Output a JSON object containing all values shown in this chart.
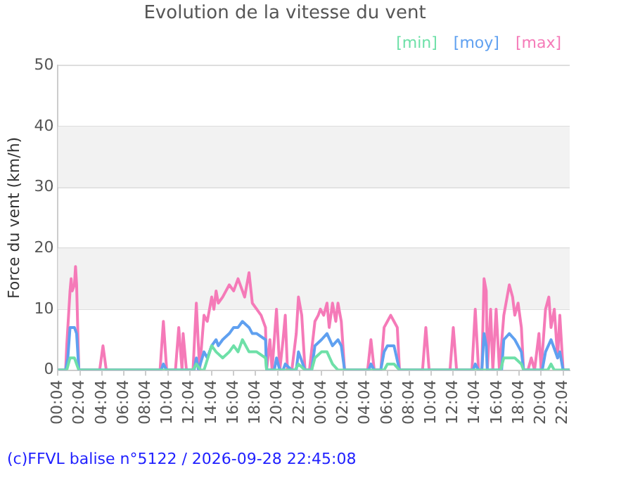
{
  "chart_data": {
    "type": "line",
    "title": "Evolution de la vitesse du vent",
    "ylabel": "Force du vent (km/h)",
    "xlim": [
      "2026-09-27T00:04",
      "2026-09-28T22:40"
    ],
    "xticks": [
      {
        "value": "2026-09-27T00:04",
        "label": "00:04"
      },
      {
        "value": "2026-09-27T02:04",
        "label": "02:04"
      },
      {
        "value": "2026-09-27T04:04",
        "label": "04:04"
      },
      {
        "value": "2026-09-27T06:04",
        "label": "06:04"
      },
      {
        "value": "2026-09-27T08:04",
        "label": "08:04"
      },
      {
        "value": "2026-09-27T10:04",
        "label": "10:04"
      },
      {
        "value": "2026-09-27T12:04",
        "label": "12:04"
      },
      {
        "value": "2026-09-27T14:04",
        "label": "14:04"
      },
      {
        "value": "2026-09-27T16:04",
        "label": "16:04"
      },
      {
        "value": "2026-09-27T18:04",
        "label": "18:04"
      },
      {
        "value": "2026-09-27T20:04",
        "label": "20:04"
      },
      {
        "value": "2026-09-27T22:04",
        "label": "22:04"
      },
      {
        "value": "2026-09-28T00:04",
        "label": "00:04"
      },
      {
        "value": "2026-09-28T02:04",
        "label": "02:04"
      },
      {
        "value": "2026-09-28T04:04",
        "label": "04:04"
      },
      {
        "value": "2026-09-28T06:04",
        "label": "06:04"
      },
      {
        "value": "2026-09-28T08:04",
        "label": "08:04"
      },
      {
        "value": "2026-09-28T10:04",
        "label": "10:04"
      },
      {
        "value": "2026-09-28T12:04",
        "label": "12:04"
      },
      {
        "value": "2026-09-28T14:04",
        "label": "14:04"
      },
      {
        "value": "2026-09-28T16:04",
        "label": "16:04"
      },
      {
        "value": "2026-09-28T18:04",
        "label": "18:04"
      },
      {
        "value": "2026-09-28T20:04",
        "label": "20:04"
      },
      {
        "value": "2026-09-28T22:04",
        "label": "22:04"
      }
    ],
    "ylim": [
      0,
      50
    ],
    "yticks": [
      0,
      10,
      20,
      30,
      40,
      50
    ],
    "grid": "y",
    "legend": "top right",
    "marker": "none",
    "line_style": "solid",
    "bands": [
      {
        "axis": "y",
        "from": 10,
        "to": 20,
        "color": "#f2f2f2"
      },
      {
        "axis": "y",
        "from": 30,
        "to": 40,
        "color": "#f2f2f2"
      }
    ],
    "annotations": [
      "(c)FFVL balise n°5122 / 2026-09-28 22:45:08"
    ],
    "series": [
      {
        "name": "[min]",
        "color": "#6ee0a8",
        "x": [
          "2026-09-27T00:04",
          "2026-09-27T00:52",
          "2026-09-27T01:10",
          "2026-09-27T01:34",
          "2026-09-27T01:58",
          "2026-09-27T12:22",
          "2026-09-27T12:40",
          "2026-09-27T13:04",
          "2026-09-27T13:22",
          "2026-09-27T14:04",
          "2026-09-27T14:28",
          "2026-09-27T15:04",
          "2026-09-27T15:40",
          "2026-09-27T16:04",
          "2026-09-27T16:28",
          "2026-09-27T16:52",
          "2026-09-27T17:28",
          "2026-09-27T18:10",
          "2026-09-27T18:58",
          "2026-09-27T19:04",
          "2026-09-27T21:40",
          "2026-09-27T21:58",
          "2026-09-27T22:34",
          "2026-09-27T23:10",
          "2026-09-27T23:28",
          "2026-09-28T00:04",
          "2026-09-28T00:34",
          "2026-09-28T01:04",
          "2026-09-28T01:34",
          "2026-09-28T05:46",
          "2026-09-28T06:04",
          "2026-09-28T06:40",
          "2026-09-28T07:10",
          "2026-09-28T16:22",
          "2026-09-28T16:40",
          "2026-09-28T17:40",
          "2026-09-28T18:16",
          "2026-09-28T18:28",
          "2026-09-28T20:40",
          "2026-09-28T20:58",
          "2026-09-28T21:16",
          "2026-09-28T22:40"
        ],
        "values": [
          0,
          0,
          2,
          2,
          0,
          0,
          1,
          0,
          0,
          4,
          3,
          2,
          3,
          4,
          3,
          5,
          3,
          3,
          2,
          0,
          0,
          1,
          0,
          0,
          2,
          3,
          3,
          1,
          0,
          0,
          1,
          1,
          0,
          0,
          2,
          2,
          1,
          0,
          0,
          1,
          0,
          0
        ]
      },
      {
        "name": "[moy]",
        "color": "#5fa0f0",
        "x": [
          "2026-09-27T00:04",
          "2026-09-27T00:46",
          "2026-09-27T00:58",
          "2026-09-27T01:10",
          "2026-09-27T01:34",
          "2026-09-27T01:46",
          "2026-09-27T01:58",
          "2026-09-27T09:28",
          "2026-09-27T09:40",
          "2026-09-27T09:58",
          "2026-09-27T12:28",
          "2026-09-27T12:40",
          "2026-09-27T12:52",
          "2026-09-27T13:22",
          "2026-09-27T13:40",
          "2026-09-27T14:04",
          "2026-09-27T14:28",
          "2026-09-27T14:40",
          "2026-09-27T15:04",
          "2026-09-27T15:40",
          "2026-09-27T16:04",
          "2026-09-27T16:28",
          "2026-09-27T16:52",
          "2026-09-27T17:28",
          "2026-09-27T17:46",
          "2026-09-27T18:10",
          "2026-09-27T18:58",
          "2026-09-27T19:04",
          "2026-09-27T19:46",
          "2026-09-27T19:58",
          "2026-09-27T20:16",
          "2026-09-27T20:34",
          "2026-09-27T20:46",
          "2026-09-27T21:22",
          "2026-09-27T21:46",
          "2026-09-27T21:58",
          "2026-09-27T22:34",
          "2026-09-27T23:10",
          "2026-09-27T23:28",
          "2026-09-28T00:04",
          "2026-09-28T00:34",
          "2026-09-28T01:04",
          "2026-09-28T01:34",
          "2026-09-28T01:52",
          "2026-09-28T02:10",
          "2026-09-28T04:22",
          "2026-09-28T04:34",
          "2026-09-28T04:52",
          "2026-09-28T05:28",
          "2026-09-28T05:46",
          "2026-09-28T06:04",
          "2026-09-28T06:40",
          "2026-09-28T07:10",
          "2026-09-28T13:52",
          "2026-09-28T14:04",
          "2026-09-28T14:22",
          "2026-09-28T14:40",
          "2026-09-28T14:52",
          "2026-09-28T15:04",
          "2026-09-28T15:10",
          "2026-09-28T16:28",
          "2026-09-28T16:40",
          "2026-09-28T17:10",
          "2026-09-28T17:40",
          "2026-09-28T18:16",
          "2026-09-28T18:28",
          "2026-09-28T20:10",
          "2026-09-28T20:28",
          "2026-09-28T20:58",
          "2026-09-28T21:34",
          "2026-09-28T21:46",
          "2026-09-28T22:04",
          "2026-09-28T22:40"
        ],
        "values": [
          0,
          0,
          2,
          7,
          7,
          6,
          0,
          0,
          1,
          0,
          0,
          2,
          0,
          3,
          2,
          4,
          5,
          4,
          5,
          6,
          7,
          7,
          8,
          7,
          6,
          6,
          5,
          0,
          0,
          2,
          0,
          0,
          1,
          0,
          0,
          3,
          0,
          0,
          4,
          5,
          6,
          4,
          5,
          4,
          0,
          0,
          1,
          0,
          0,
          3,
          4,
          4,
          0,
          0,
          1,
          0,
          0,
          6,
          4,
          0,
          0,
          5,
          6,
          5,
          3,
          0,
          0,
          3,
          5,
          2,
          3,
          0,
          0
        ]
      },
      {
        "name": "[max]",
        "color": "#f57ab8",
        "x": [
          "2026-09-27T00:04",
          "2026-09-27T00:46",
          "2026-09-27T00:52",
          "2026-09-27T01:10",
          "2026-09-27T01:16",
          "2026-09-27T01:22",
          "2026-09-27T01:34",
          "2026-09-27T01:40",
          "2026-09-27T01:46",
          "2026-09-27T01:58",
          "2026-09-27T03:52",
          "2026-09-27T04:10",
          "2026-09-27T04:28",
          "2026-09-27T09:22",
          "2026-09-27T09:40",
          "2026-09-27T09:58",
          "2026-09-27T10:46",
          "2026-09-27T11:04",
          "2026-09-27T11:22",
          "2026-09-27T11:28",
          "2026-09-27T11:46",
          "2026-09-27T12:22",
          "2026-09-27T12:40",
          "2026-09-27T12:58",
          "2026-09-27T13:22",
          "2026-09-27T13:40",
          "2026-09-27T14:04",
          "2026-09-27T14:16",
          "2026-09-27T14:28",
          "2026-09-27T14:40",
          "2026-09-27T15:04",
          "2026-09-27T15:22",
          "2026-09-27T15:40",
          "2026-09-27T16:04",
          "2026-09-27T16:28",
          "2026-09-27T16:52",
          "2026-09-27T17:04",
          "2026-09-27T17:28",
          "2026-09-27T17:46",
          "2026-09-27T18:10",
          "2026-09-27T18:34",
          "2026-09-27T18:58",
          "2026-09-27T19:04",
          "2026-09-27T19:22",
          "2026-09-27T19:34",
          "2026-09-27T19:58",
          "2026-09-27T20:16",
          "2026-09-27T20:34",
          "2026-09-27T20:46",
          "2026-09-27T20:58",
          "2026-09-27T21:22",
          "2026-09-27T21:46",
          "2026-09-27T21:58",
          "2026-09-27T22:16",
          "2026-09-27T22:34",
          "2026-09-27T22:58",
          "2026-09-27T23:28",
          "2026-09-27T23:46",
          "2026-09-27T23:58",
          "2026-09-28T00:16",
          "2026-09-28T00:34",
          "2026-09-28T00:46",
          "2026-09-28T01:04",
          "2026-09-28T01:22",
          "2026-09-28T01:34",
          "2026-09-28T01:52",
          "2026-09-28T02:10",
          "2026-09-28T04:16",
          "2026-09-28T04:34",
          "2026-09-28T04:52",
          "2026-09-28T05:28",
          "2026-09-28T05:46",
          "2026-09-28T06:04",
          "2026-09-28T06:22",
          "2026-09-28T06:40",
          "2026-09-28T06:58",
          "2026-09-28T07:10",
          "2026-09-28T09:16",
          "2026-09-28T09:34",
          "2026-09-28T09:52",
          "2026-09-28T11:46",
          "2026-09-28T12:04",
          "2026-09-28T12:22",
          "2026-09-28T13:46",
          "2026-09-28T14:04",
          "2026-09-28T14:22",
          "2026-09-28T14:40",
          "2026-09-28T14:52",
          "2026-09-28T15:04",
          "2026-09-28T15:10",
          "2026-09-28T15:28",
          "2026-09-28T15:40",
          "2026-09-28T15:58",
          "2026-09-28T16:16",
          "2026-09-28T16:40",
          "2026-09-28T16:52",
          "2026-09-28T17:10",
          "2026-09-28T17:28",
          "2026-09-28T17:40",
          "2026-09-28T17:58",
          "2026-09-28T18:16",
          "2026-09-28T18:28",
          "2026-09-28T18:52",
          "2026-09-28T19:10",
          "2026-09-28T19:28",
          "2026-09-28T19:52",
          "2026-09-28T20:04",
          "2026-09-28T20:28",
          "2026-09-28T20:46",
          "2026-09-28T20:58",
          "2026-09-28T21:16",
          "2026-09-28T21:34",
          "2026-09-28T21:46",
          "2026-09-28T22:04",
          "2026-09-28T22:40"
        ],
        "values": [
          0,
          0,
          4,
          13,
          15,
          13,
          14,
          17,
          14,
          0,
          0,
          4,
          0,
          0,
          8,
          0,
          0,
          7,
          0,
          6,
          0,
          0,
          11,
          0,
          9,
          8,
          12,
          10,
          13,
          11,
          12,
          13,
          14,
          13,
          15,
          13,
          12,
          16,
          11,
          10,
          9,
          7,
          0,
          5,
          0,
          10,
          0,
          5,
          9,
          0,
          0,
          6,
          12,
          9,
          0,
          0,
          8,
          9,
          10,
          9,
          11,
          7,
          11,
          8,
          11,
          8,
          0,
          0,
          5,
          0,
          0,
          7,
          8,
          9,
          8,
          7,
          0,
          0,
          7,
          0,
          0,
          7,
          0,
          0,
          10,
          0,
          0,
          15,
          13,
          0,
          10,
          0,
          10,
          0,
          9,
          11,
          14,
          12,
          9,
          11,
          7,
          0,
          0,
          2,
          0,
          6,
          0,
          10,
          12,
          7,
          10,
          2,
          9,
          0,
          0
        ]
      }
    ]
  }
}
